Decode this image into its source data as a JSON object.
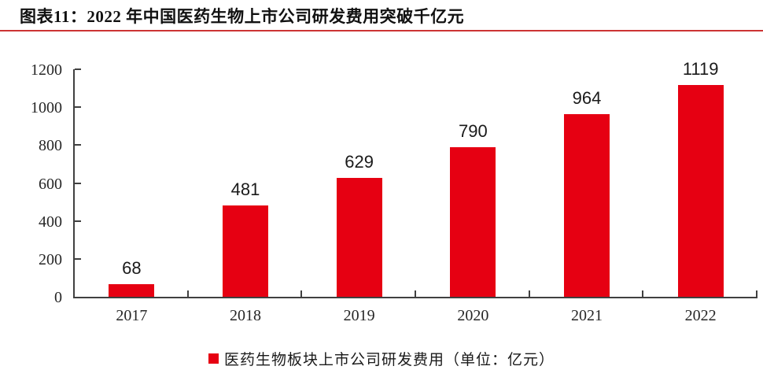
{
  "header": {
    "title": "图表11：2022 年中国医药生物上市公司研发费用突破千亿元"
  },
  "colors": {
    "bar_red": "#E60012",
    "title_rule_red": "#CC3333",
    "axis_gray": "#404040",
    "text_dark": "#1a1a1a"
  },
  "chart_data": {
    "type": "bar",
    "title": "图表11：2022 年中国医药生物上市公司研发费用突破千亿元",
    "categories": [
      "2017",
      "2018",
      "2019",
      "2020",
      "2021",
      "2022"
    ],
    "values": [
      68,
      481,
      629,
      790,
      964,
      1119
    ],
    "data_labels": [
      68,
      481,
      629,
      790,
      964,
      1119
    ],
    "xlabel": "",
    "ylabel": "",
    "ylim": [
      0,
      1200
    ],
    "y_ticks": [
      0,
      200,
      400,
      600,
      800,
      1000,
      1200
    ],
    "grid": false,
    "legend": "医药生物板块上市公司研发费用（单位：亿元）",
    "legend_position": "bottom",
    "bar_color": "#E60012"
  }
}
